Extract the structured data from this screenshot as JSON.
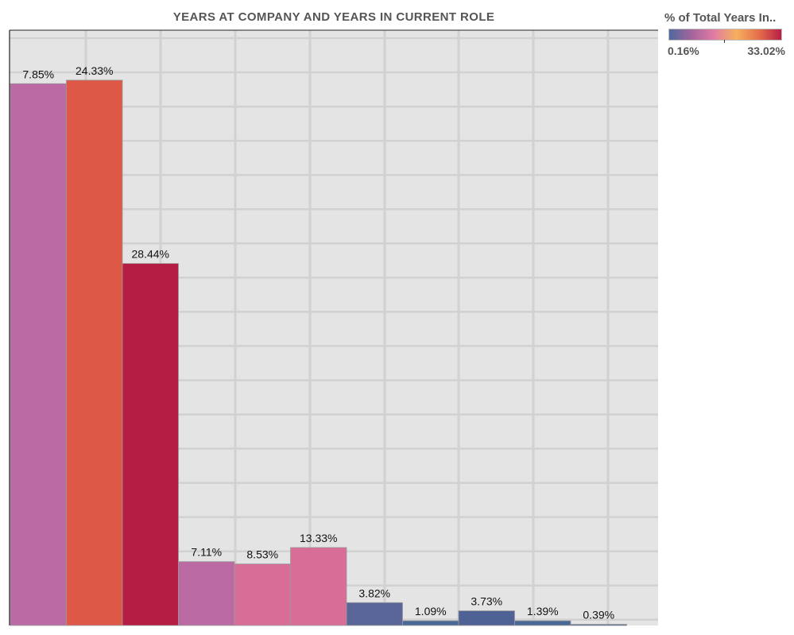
{
  "chart_data": {
    "type": "bar",
    "title": "YEARS AT COMPANY AND YEARS IN CURRENT ROLE",
    "xlabel": "",
    "ylabel": "",
    "grid": true,
    "legend": {
      "title": "% of Total Years In..",
      "min_label": "0.16%",
      "max_label": "33.02%",
      "min": 0.16,
      "max": 33.02,
      "placement": "top-right",
      "gradient_colors": [
        "#4e6a9e",
        "#a4649c",
        "#e07ca4",
        "#f6b05e",
        "#e46e4a",
        "#b81e48"
      ]
    },
    "ylim": [
      0,
      100
    ],
    "bars": [
      {
        "label": "7.85%",
        "height": 92.5,
        "color": "#bc6aa3"
      },
      {
        "label": "24.33%",
        "height": 93.1,
        "color": "#dd5846"
      },
      {
        "label": "28.44%",
        "height": 61.8,
        "color": "#b51c44"
      },
      {
        "label": "7.11%",
        "height": 10.9,
        "color": "#bc6aa3"
      },
      {
        "label": "8.53%",
        "height": 10.5,
        "color": "#d86e97"
      },
      {
        "label": "13.33%",
        "height": 13.3,
        "color": "#d86e97"
      },
      {
        "label": "3.82%",
        "height": 3.9,
        "color": "#5a6598"
      },
      {
        "label": "1.09%",
        "height": 0.8,
        "color": "#4a6895"
      },
      {
        "label": "3.73%",
        "height": 2.5,
        "color": "#4f6296"
      },
      {
        "label": "1.39%",
        "height": 0.8,
        "color": "#4a6895"
      },
      {
        "label": "0.39%",
        "height": 0.2,
        "color": "#4a6895"
      }
    ]
  }
}
